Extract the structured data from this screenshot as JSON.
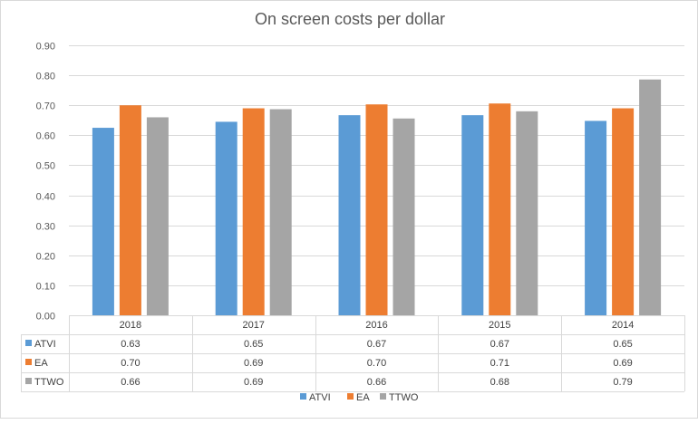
{
  "chart_data": {
    "type": "bar",
    "title": "On screen costs per dollar",
    "categories": [
      "2018",
      "2017",
      "2016",
      "2015",
      "2014"
    ],
    "ylim": [
      0,
      0.9
    ],
    "yticks": [
      "0.00",
      "0.10",
      "0.20",
      "0.30",
      "0.40",
      "0.50",
      "0.60",
      "0.70",
      "0.80",
      "0.90"
    ],
    "series": [
      {
        "name": "ATVI",
        "color": "#5b9bd5",
        "values": [
          0.625,
          0.645,
          0.667,
          0.667,
          0.648
        ],
        "labels": [
          "0.63",
          "0.65",
          "0.67",
          "0.67",
          "0.65"
        ]
      },
      {
        "name": "EA",
        "color": "#ed7d31",
        "values": [
          0.7,
          0.69,
          0.703,
          0.706,
          0.69
        ],
        "labels": [
          "0.70",
          "0.69",
          "0.70",
          "0.71",
          "0.69"
        ]
      },
      {
        "name": "TTWO",
        "color": "#a5a5a5",
        "values": [
          0.66,
          0.687,
          0.656,
          0.68,
          0.786
        ],
        "labels": [
          "0.66",
          "0.69",
          "0.66",
          "0.68",
          "0.79"
        ]
      }
    ],
    "legend": {
      "position": "bottom",
      "entries": [
        "ATVI",
        "EA",
        "TTWO"
      ]
    },
    "data_table": true
  }
}
